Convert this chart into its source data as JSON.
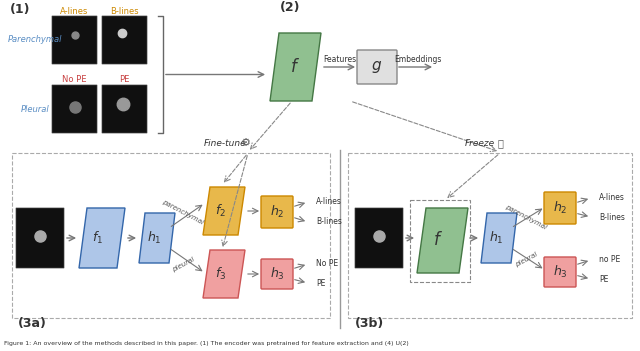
{
  "bg_color": "#ffffff",
  "blue_color": "#aec6e8",
  "green_color": "#90c090",
  "gold_color": "#e8b84b",
  "pink_color": "#f0a0a0",
  "gray_color": "#c8c8c8",
  "light_gray": "#e0e0e0",
  "arrow_color": "#777777",
  "blue_text": "#5b8ec4",
  "red_text": "#c84040",
  "gold_text": "#cc8800",
  "label1": "(1)",
  "label2": "(2)",
  "label3a": "(3a)",
  "label3b": "(3b)",
  "caption": "Figure 1: An overview of the methods described in this paper. (1) The encoder was pretrained for feature extraction and (4) U(2)"
}
